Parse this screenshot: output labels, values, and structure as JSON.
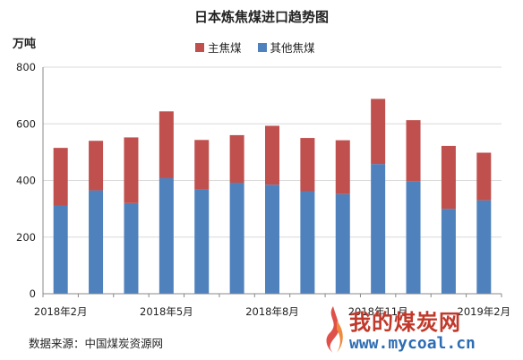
{
  "title": "日本炼焦煤进口趋势图",
  "unit_label": "万吨",
  "source_note": "数据来源：中国煤炭资源网",
  "watermark": {
    "main_text": "我的煤炭网",
    "url_text": "www.mycoal.cn"
  },
  "colors": {
    "main_coking": "#c0504d",
    "other_coking": "#4f81bd",
    "grid": "#d9d9d9",
    "axis": "#888888"
  },
  "chart_data": {
    "type": "bar",
    "stacked": true,
    "categories": [
      "2018-02",
      "2018-03",
      "2018-04",
      "2018-05",
      "2018-06",
      "2018-07",
      "2018-08",
      "2018-09",
      "2018-10",
      "2018-11",
      "2018-12",
      "2019-01",
      "2019-02"
    ],
    "x_tick_labels": [
      {
        "index": 0,
        "label": "2018年2月"
      },
      {
        "index": 3,
        "label": "2018年5月"
      },
      {
        "index": 6,
        "label": "2018年8月"
      },
      {
        "index": 9,
        "label": "2018年11月"
      },
      {
        "index": 12,
        "label": "2019年2月"
      }
    ],
    "series": [
      {
        "name": "其他焦煤",
        "color_key": "other_coking",
        "values": [
          310,
          365,
          320,
          408,
          368,
          392,
          385,
          362,
          352,
          458,
          398,
          300,
          330
        ]
      },
      {
        "name": "主焦煤",
        "color_key": "main_coking",
        "values": [
          205,
          175,
          232,
          236,
          175,
          168,
          208,
          188,
          190,
          230,
          215,
          222,
          168
        ]
      }
    ],
    "legend": [
      "主焦煤",
      "其他焦煤"
    ],
    "legend_placement": "top",
    "ylim": [
      0,
      800
    ],
    "yticks": [
      0,
      200,
      400,
      600,
      800
    ],
    "grid": true
  }
}
